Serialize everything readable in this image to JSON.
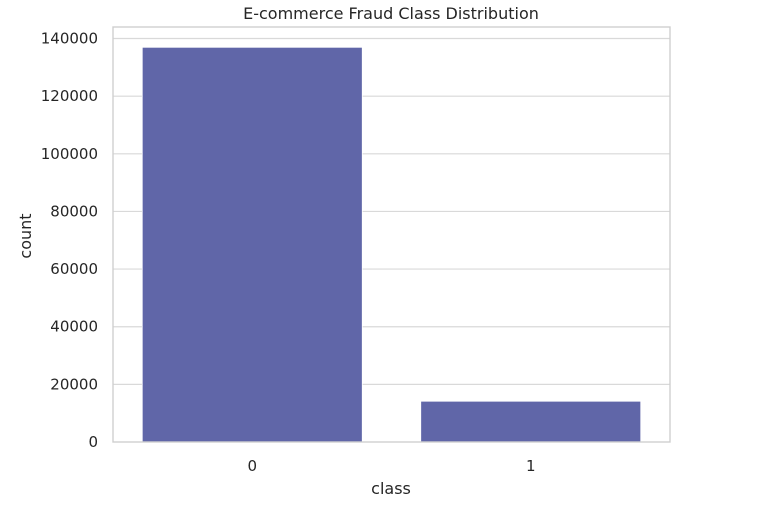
{
  "chart_data": {
    "type": "bar",
    "title": "E-commerce Fraud Class Distribution",
    "xlabel": "class",
    "ylabel": "count",
    "categories": [
      "0",
      "1"
    ],
    "values": [
      136961,
      14151
    ],
    "ylim": [
      0,
      144000
    ],
    "yticks": [
      0,
      20000,
      40000,
      60000,
      80000,
      100000,
      120000,
      140000
    ],
    "grid": "horizontal",
    "bar_color": "#6066a8"
  }
}
